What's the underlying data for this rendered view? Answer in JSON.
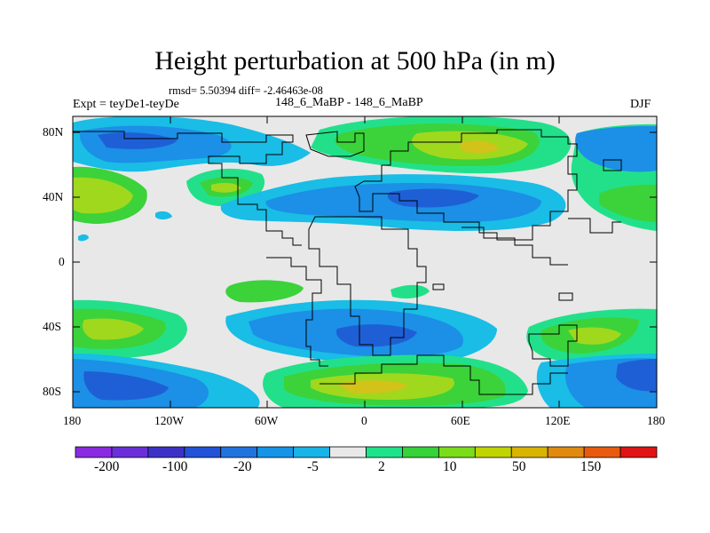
{
  "title": "Height perturbation at 500 hPa (in m)",
  "stats": "rmsd= 5.50394 diff= -2.46463e-08",
  "expt": "Expt = teyDe1-teyDe",
  "dates": "148_6_MaBP - 148_6_MaBP",
  "season": "DJF",
  "map": {
    "x_ticks": [
      "180",
      "120W",
      "60W",
      "0",
      "60E",
      "120E",
      "180"
    ],
    "y_ticks": [
      "80N",
      "40N",
      "0",
      "40S",
      "80S"
    ],
    "lon_range": [
      -180,
      180
    ],
    "lat_range": [
      -90,
      90
    ]
  },
  "colorbar": {
    "colors": [
      "#8a2be2",
      "#6a2fd8",
      "#3d32c8",
      "#2152d8",
      "#1f74e0",
      "#1594e8",
      "#18b4e8",
      "#e8e8e8",
      "#1ee38a",
      "#35d23a",
      "#7bdc1a",
      "#c0d400",
      "#d9b400",
      "#e08a10",
      "#e85a10",
      "#e01414"
    ],
    "labels": [
      "-200",
      "-100",
      "-20",
      "-5",
      "2",
      "10",
      "50",
      "150"
    ]
  },
  "colors": {
    "ocean": "#e8e8e8",
    "strong_neg": "#1e5fd6",
    "neg": "#1c8fe6",
    "weak_neg": "#19bde6",
    "weak_pos": "#22e08a",
    "pos": "#3cd23a",
    "strong_pos": "#a0d81e",
    "peak_pos": "#d2c21a"
  }
}
